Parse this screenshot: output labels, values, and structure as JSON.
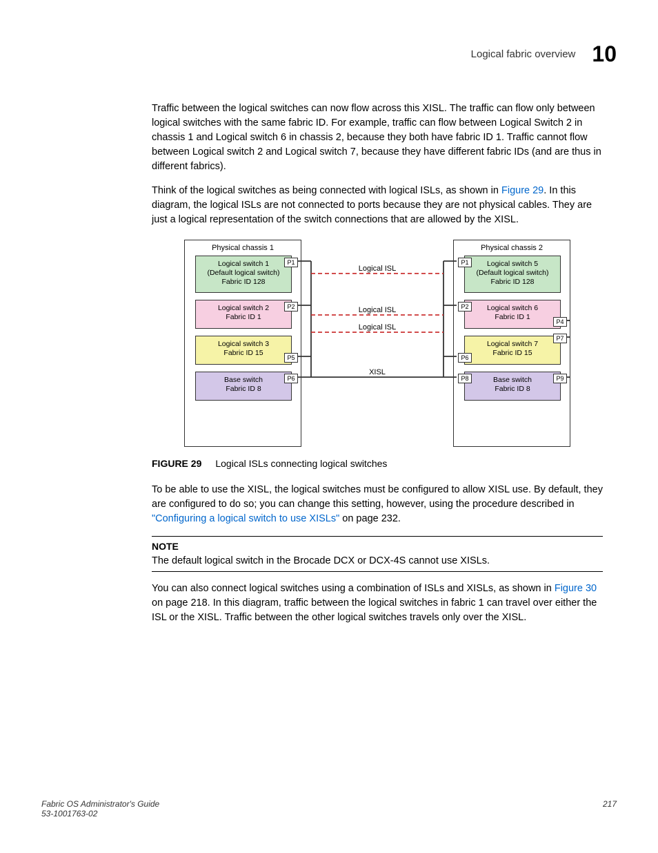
{
  "header": {
    "title": "Logical fabric overview",
    "chapter": "10"
  },
  "paragraphs": {
    "p1": "Traffic between the logical switches can now flow across this XISL. The traffic can flow only between logical switches with the same fabric ID. For example, traffic can flow between Logical Switch 2 in chassis 1 and Logical switch 6 in chassis 2, because they both have fabric ID 1. Traffic cannot flow between Logical switch 2 and Logical switch 7, because they have different fabric IDs (and are thus in different fabrics).",
    "p2_a": "Think of the logical switches as being connected with logical ISLs, as shown in ",
    "p2_link": "Figure 29",
    "p2_b": ". In this diagram, the logical ISLs are not connected to ports because they are not physical cables. They are just a logical representation of the switch connections that are allowed by the XISL.",
    "p3_a": "To be able to use the XISL, the logical switches must be configured to allow XISL use. By default, they are configured to do so; you can change this setting, however, using the procedure described in ",
    "p3_link": "\"Configuring a logical switch to use XISLs\"",
    "p3_b": " on page 232.",
    "p4_a": "You can also connect logical switches using a combination of ISLs and XISLs, as shown in ",
    "p4_link": "Figure 30",
    "p4_b": " on page 218. In this diagram, traffic between the logical switches in fabric 1 can travel over either the ISL or the XISL. Traffic between the other logical switches travels only over the XISL."
  },
  "figure": {
    "num": "FIGURE 29",
    "caption": "Logical ISLs connecting logical switches"
  },
  "note": {
    "label": "NOTE",
    "text": "The default logical switch in the Brocade DCX or DCX-4S cannot use XISLs."
  },
  "footer": {
    "line1": "Fabric OS Administrator's Guide",
    "line2": "53-1001763-02",
    "pagenum": "217"
  },
  "diagram": {
    "colors": {
      "sw_default": "#c7e6c7",
      "sw_fid1": "#f7cfe1",
      "sw_fid15": "#f6f3a7",
      "sw_base": "#d3c7e8",
      "dashed": "#cc3333",
      "solid": "#333333"
    },
    "chassis1": {
      "label": "Physical chassis 1",
      "switches": [
        {
          "name": "Logical switch 1",
          "sub": "(Default logical switch)",
          "fid": "Fabric ID 128",
          "color": "sw_default",
          "ports": [
            {
              "id": "P1",
              "side": "right",
              "voff": 0
            }
          ]
        },
        {
          "name": "Logical switch 2",
          "sub": "",
          "fid": "Fabric ID 1",
          "color": "sw_fid1",
          "ports": [
            {
              "id": "P2",
              "side": "right",
              "voff": 0
            }
          ]
        },
        {
          "name": "Logical switch 3",
          "sub": "",
          "fid": "Fabric ID 15",
          "color": "sw_fid15",
          "ports": [
            {
              "id": "P5",
              "side": "right",
              "voff": 22
            }
          ]
        },
        {
          "name": "Base switch",
          "sub": "",
          "fid": "Fabric ID 8",
          "color": "sw_base",
          "ports": [
            {
              "id": "P6",
              "side": "right",
              "voff": 0
            }
          ]
        }
      ]
    },
    "chassis2": {
      "label": "Physical chassis 2",
      "switches": [
        {
          "name": "Logical switch 5",
          "sub": "(Default logical switch)",
          "fid": "Fabric ID 128",
          "color": "sw_default",
          "ports": [
            {
              "id": "P1",
              "side": "left",
              "voff": 0
            }
          ]
        },
        {
          "name": "Logical switch 6",
          "sub": "",
          "fid": "Fabric ID 1",
          "color": "sw_fid1",
          "ports": [
            {
              "id": "P2",
              "side": "left",
              "voff": 0
            },
            {
              "id": "P4",
              "side": "right",
              "voff": 22
            }
          ]
        },
        {
          "name": "Logical switch 7",
          "sub": "",
          "fid": "Fabric ID 15",
          "color": "sw_fid15",
          "ports": [
            {
              "id": "P6",
              "side": "left",
              "voff": 22
            },
            {
              "id": "P7",
              "side": "right",
              "voff": -6
            }
          ]
        },
        {
          "name": "Base switch",
          "sub": "",
          "fid": "Fabric ID 8",
          "color": "sw_base",
          "ports": [
            {
              "id": "P8",
              "side": "left",
              "voff": 0
            },
            {
              "id": "P9",
              "side": "right",
              "voff": 0
            }
          ]
        }
      ]
    },
    "labels": {
      "isl1": "Logical ISL",
      "isl2": "Logical ISL",
      "isl3": "Logical ISL",
      "xisl": "XISL"
    }
  }
}
